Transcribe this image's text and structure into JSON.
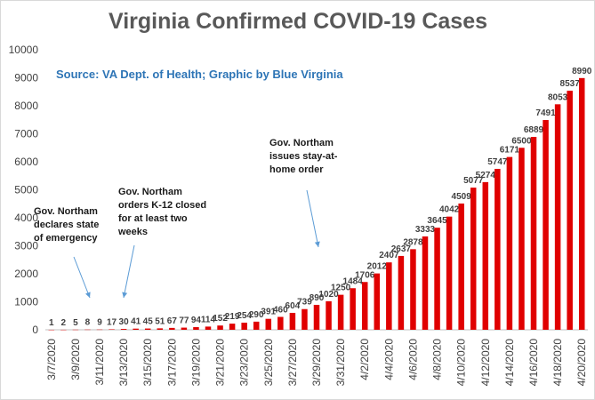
{
  "chart_data": {
    "type": "bar",
    "title": "Virginia Confirmed COVID-19 Cases",
    "subtitle": "Source: VA Dept. of Health; Graphic by Blue Virginia",
    "categories": [
      "3/7/2020",
      "3/8/2020",
      "3/9/2020",
      "3/10/2020",
      "3/11/2020",
      "3/12/2020",
      "3/13/2020",
      "3/14/2020",
      "3/15/2020",
      "3/16/2020",
      "3/17/2020",
      "3/18/2020",
      "3/19/2020",
      "3/20/2020",
      "3/21/2020",
      "3/22/2020",
      "3/23/2020",
      "3/24/2020",
      "3/25/2020",
      "3/26/2020",
      "3/27/2020",
      "3/28/2020",
      "3/29/2020",
      "3/30/2020",
      "3/31/2020",
      "4/1/2020",
      "4/2/2020",
      "4/3/2020",
      "4/4/2020",
      "4/5/2020",
      "4/6/2020",
      "4/7/2020",
      "4/8/2020",
      "4/9/2020",
      "4/10/2020",
      "4/11/2020",
      "4/12/2020",
      "4/13/2020",
      "4/14/2020",
      "4/15/2020",
      "4/16/2020",
      "4/17/2020",
      "4/18/2020",
      "4/19/2020",
      "4/20/2020"
    ],
    "values": [
      1,
      2,
      5,
      8,
      9,
      17,
      30,
      41,
      45,
      51,
      67,
      77,
      94,
      114,
      152,
      219,
      254,
      290,
      391,
      460,
      604,
      739,
      890,
      1020,
      1250,
      1484,
      1706,
      2012,
      2407,
      2637,
      2878,
      3333,
      3645,
      4042,
      4509,
      5077,
      5274,
      5747,
      6171,
      6500,
      6889,
      7491,
      8053,
      8537,
      8990
    ],
    "ylim": [
      0,
      10000
    ],
    "yticks": [
      "0",
      "1000",
      "2000",
      "3000",
      "4000",
      "5000",
      "6000",
      "7000",
      "8000",
      "9000",
      "10000"
    ],
    "xtick_labels": [
      "3/7/2020",
      "3/9/2020",
      "3/11/2020",
      "3/13/2020",
      "3/15/2020",
      "3/17/2020",
      "3/19/2020",
      "3/21/2020",
      "3/23/2020",
      "3/25/2020",
      "3/27/2020",
      "3/29/2020",
      "3/31/2020",
      "4/2/2020",
      "4/4/2020",
      "4/6/2020",
      "4/8/2020",
      "4/10/2020",
      "4/12/2020",
      "4/14/2020",
      "4/16/2020",
      "4/18/2020",
      "4/20/2020"
    ],
    "bar_color": "#e00000",
    "label_color": "#404040",
    "annotations": [
      {
        "lines": [
          "Gov. Northam",
          "declares state",
          "of emergency"
        ],
        "category": "3/10/2020"
      },
      {
        "lines": [
          "Gov. Northam",
          "orders K-12 closed",
          "for at least two",
          "weeks"
        ],
        "category": "3/12/2020"
      },
      {
        "lines": [
          "Gov. Northam",
          "issues stay-at-",
          "home order"
        ],
        "category": "3/30/2020"
      }
    ]
  }
}
